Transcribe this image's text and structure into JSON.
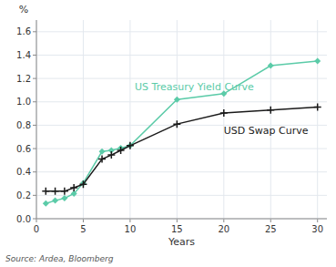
{
  "chart_data": {
    "type": "line",
    "x": [
      1,
      2,
      3,
      4,
      5,
      7,
      8,
      9,
      10,
      15,
      20,
      25,
      30
    ],
    "series": [
      {
        "color": "#5bcba8",
        "marker": "diamond",
        "values": [
          0.13,
          0.155,
          0.175,
          0.215,
          0.305,
          0.575,
          0.585,
          0.605,
          0.625,
          1.02,
          1.07,
          1.31,
          1.35
        ]
      },
      {
        "color": "#1a1a1a",
        "marker": "plus",
        "values": [
          0.235,
          0.235,
          0.235,
          0.265,
          0.295,
          0.51,
          0.545,
          0.585,
          0.625,
          0.81,
          0.905,
          0.93,
          0.955
        ]
      }
    ],
    "annotations": [
      {
        "text": "US Treasury Yield Curve",
        "x": 10.5,
        "y": 1.13,
        "color": "#5bcba8"
      },
      {
        "text": "USD Swap Curve",
        "x": 20.0,
        "y": 0.755,
        "color": "#1a1a1a"
      }
    ],
    "xlabel": "Years",
    "ylabel": "%",
    "source": "Source: Ardea, Bloomberg",
    "xlim": [
      0,
      31
    ],
    "ylim": [
      0.0,
      1.7
    ],
    "xticks": [
      0,
      5,
      10,
      15,
      20,
      25,
      30
    ],
    "yticks": [
      {
        "value": 0.0,
        "label": "0.0"
      },
      0.2,
      0.4,
      0.6,
      0.8,
      {
        "value": 1.0,
        "label": "1.0"
      },
      1.2,
      1.4,
      1.6
    ],
    "grid": true
  }
}
